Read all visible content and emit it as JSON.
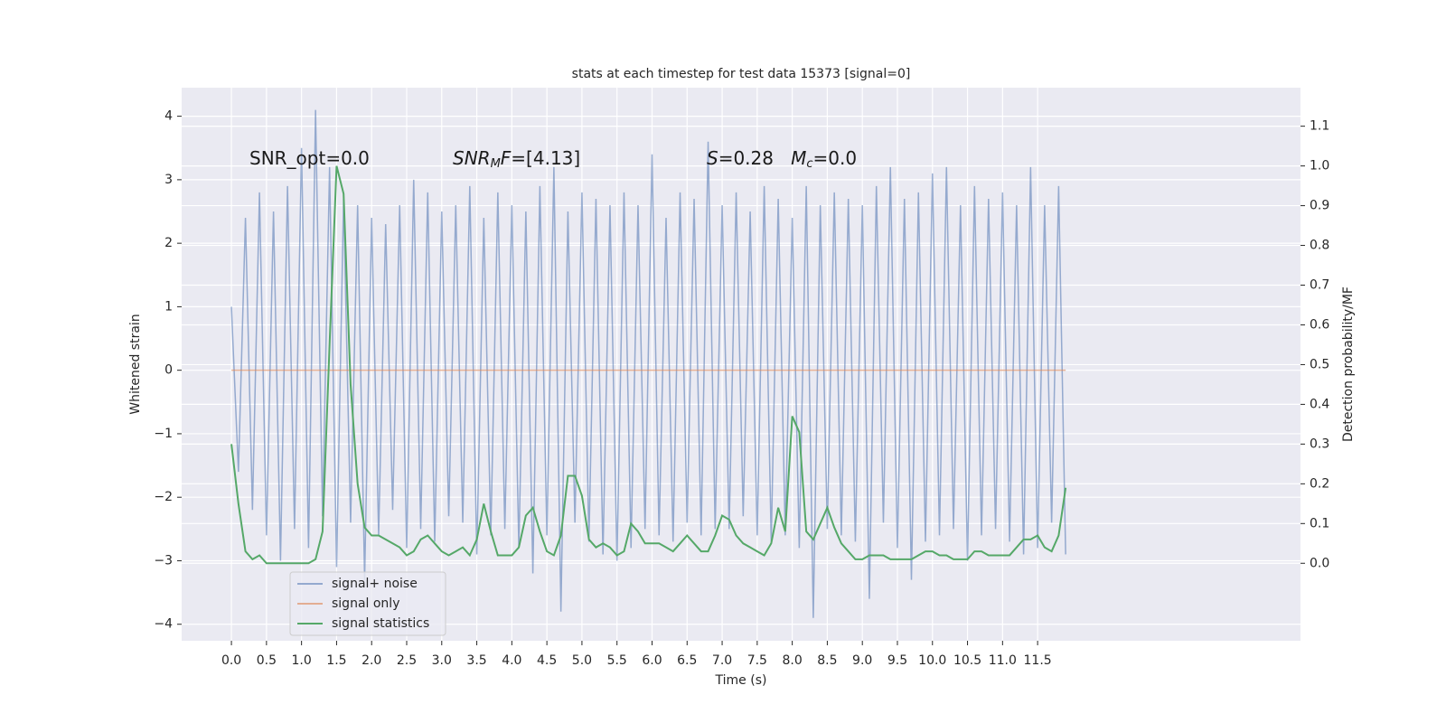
{
  "chart_data": {
    "type": "line",
    "title": "stats at each timestep for test data 15373 [signal=0]",
    "xlabel": "Time (s)",
    "ylabel": "Whitened strain",
    "y2label": "Detection probability/MF",
    "xlim": [
      -0.71,
      15.25
    ],
    "ylim": [
      -4.26,
      4.45
    ],
    "y2lim": [
      -0.195,
      1.197
    ],
    "xticks": [
      {
        "value": 0,
        "label": "0.0"
      },
      0.5,
      {
        "value": 1,
        "label": "1.0"
      },
      1.5,
      {
        "value": 2,
        "label": "2.0"
      },
      2.5,
      {
        "value": 3,
        "label": "3.0"
      },
      3.5,
      {
        "value": 4,
        "label": "4.0"
      },
      4.5,
      {
        "value": 5,
        "label": "5.0"
      },
      5.5,
      {
        "value": 6,
        "label": "6.0"
      },
      6.5,
      {
        "value": 7,
        "label": "7.0"
      },
      7.5,
      {
        "value": 8,
        "label": "8.0"
      },
      8.5,
      {
        "value": 9,
        "label": "9.0"
      },
      9.5,
      {
        "value": 10,
        "label": "10.0"
      },
      10.5,
      {
        "value": 11,
        "label": "11.0"
      },
      11.5
    ],
    "yticks": [
      {
        "value": -4,
        "label": "−4"
      },
      {
        "value": -3,
        "label": "−3"
      },
      {
        "value": -2,
        "label": "−2"
      },
      {
        "value": -1,
        "label": "−1"
      },
      0,
      1,
      2,
      3,
      4
    ],
    "y2ticks": [
      {
        "value": 0,
        "label": "0.0"
      },
      0.1,
      0.2,
      0.3,
      0.4,
      0.5,
      0.6,
      0.7,
      0.8,
      0.9,
      {
        "value": 1,
        "label": "1.0"
      },
      1.1
    ],
    "grid": true,
    "legend": "lower left",
    "annotations": [
      {
        "segments": [
          {
            "text": "SNR_opt=0.0",
            "style": "normal"
          }
        ]
      },
      {
        "segments": [
          {
            "text": "SNR",
            "style": "italic"
          },
          {
            "text": "M",
            "style": "sub"
          },
          {
            "text": "F",
            "style": "italic"
          },
          {
            "text": "=[4.13]",
            "style": "normal"
          }
        ]
      },
      {
        "segments": [
          {
            "text": "S",
            "style": "italic"
          },
          {
            "text": "=0.28   ",
            "style": "normal"
          },
          {
            "text": "M",
            "style": "italic"
          },
          {
            "text": "c",
            "style": "sub"
          },
          {
            "text": "=0.0",
            "style": "normal"
          }
        ]
      }
    ],
    "x": [
      0.0,
      0.1,
      0.2,
      0.3,
      0.4,
      0.5,
      0.6,
      0.7,
      0.8,
      0.9,
      1.0,
      1.1,
      1.2,
      1.3,
      1.4,
      1.5,
      1.6,
      1.7,
      1.8,
      1.9,
      2.0,
      2.1,
      2.2,
      2.3,
      2.4,
      2.5,
      2.6,
      2.7,
      2.8,
      2.9,
      3.0,
      3.1,
      3.2,
      3.3,
      3.4,
      3.5,
      3.6,
      3.7,
      3.8,
      3.9,
      4.0,
      4.1,
      4.2,
      4.3,
      4.4,
      4.5,
      4.6,
      4.7,
      4.8,
      4.9,
      5.0,
      5.1,
      5.2,
      5.3,
      5.4,
      5.5,
      5.6,
      5.7,
      5.8,
      5.9,
      6.0,
      6.1,
      6.2,
      6.3,
      6.4,
      6.5,
      6.6,
      6.7,
      6.8,
      6.9,
      7.0,
      7.1,
      7.2,
      7.3,
      7.4,
      7.5,
      7.6,
      7.7,
      7.8,
      7.9,
      8.0,
      8.1,
      8.2,
      8.3,
      8.4,
      8.5,
      8.6,
      8.7,
      8.8,
      8.9,
      9.0,
      9.1,
      9.2,
      9.3,
      9.4,
      9.5,
      9.6,
      9.7,
      9.8,
      9.9,
      10.0,
      10.1,
      10.2,
      10.3,
      10.4,
      10.5,
      10.6,
      10.7,
      10.8,
      10.9,
      11.0,
      11.1,
      11.2,
      11.3,
      11.4,
      11.5,
      11.6,
      11.7,
      11.8,
      11.9
    ],
    "series": [
      {
        "name": "signal+ noise",
        "color": "#4c72b0",
        "opacity": 0.55,
        "values": [
          1.0,
          -1.6,
          2.4,
          -2.2,
          2.8,
          -2.6,
          2.5,
          -3.0,
          2.9,
          -2.5,
          3.5,
          -2.8,
          4.1,
          -2.3,
          3.2,
          -3.1,
          2.7,
          -2.4,
          2.6,
          -3.3,
          2.4,
          -2.6,
          2.3,
          -2.2,
          2.6,
          -2.8,
          3.0,
          -2.5,
          2.8,
          -2.7,
          2.5,
          -2.3,
          2.6,
          -2.4,
          2.9,
          -2.9,
          2.4,
          -2.6,
          2.8,
          -2.5,
          2.6,
          -2.8,
          2.5,
          -3.2,
          2.9,
          -2.6,
          3.2,
          -3.8,
          2.5,
          -2.4,
          2.8,
          -2.7,
          2.7,
          -2.9,
          2.6,
          -3.0,
          2.8,
          -2.8,
          2.6,
          -2.5,
          3.4,
          -2.6,
          2.4,
          -2.7,
          2.8,
          -2.4,
          2.7,
          -2.6,
          3.6,
          -2.5,
          2.6,
          -2.5,
          2.8,
          -2.3,
          2.5,
          -2.6,
          2.9,
          -2.7,
          2.7,
          -2.6,
          2.4,
          -2.8,
          2.9,
          -3.9,
          2.6,
          -2.5,
          2.8,
          -2.6,
          2.7,
          -2.7,
          2.6,
          -3.6,
          2.9,
          -2.4,
          3.2,
          -2.8,
          2.7,
          -3.3,
          2.8,
          -2.7,
          3.1,
          -2.6,
          3.2,
          -2.5,
          2.6,
          -3.0,
          2.9,
          -2.6,
          2.7,
          -2.5,
          2.8,
          -2.7,
          2.6,
          -2.9,
          3.2,
          -2.8,
          2.6,
          -2.4,
          2.9,
          -2.9
        ]
      },
      {
        "name": "signal only",
        "color": "#dd8452",
        "opacity": 0.6,
        "values": [
          0,
          0,
          0,
          0,
          0,
          0,
          0,
          0,
          0,
          0,
          0,
          0,
          0,
          0,
          0,
          0,
          0,
          0,
          0,
          0,
          0,
          0,
          0,
          0,
          0,
          0,
          0,
          0,
          0,
          0,
          0,
          0,
          0,
          0,
          0,
          0,
          0,
          0,
          0,
          0,
          0,
          0,
          0,
          0,
          0,
          0,
          0,
          0,
          0,
          0,
          0,
          0,
          0,
          0,
          0,
          0,
          0,
          0,
          0,
          0,
          0,
          0,
          0,
          0,
          0,
          0,
          0,
          0,
          0,
          0,
          0,
          0,
          0,
          0,
          0,
          0,
          0,
          0,
          0,
          0,
          0,
          0,
          0,
          0,
          0,
          0,
          0,
          0,
          0,
          0,
          0,
          0,
          0,
          0,
          0,
          0,
          0,
          0,
          0,
          0,
          0,
          0,
          0,
          0,
          0,
          0,
          0,
          0,
          0,
          0,
          0,
          0,
          0,
          0,
          0,
          0,
          0,
          0,
          0,
          0
        ]
      },
      {
        "name": "signal statistics",
        "color": "#55a868",
        "opacity": 1,
        "axis": "y2",
        "values": [
          0.3,
          0.15,
          0.03,
          0.01,
          0.02,
          0.0,
          0.0,
          0.0,
          0.0,
          0.0,
          0.0,
          0.0,
          0.01,
          0.08,
          0.55,
          1.0,
          0.93,
          0.45,
          0.2,
          0.09,
          0.07,
          0.07,
          0.06,
          0.05,
          0.04,
          0.02,
          0.03,
          0.06,
          0.07,
          0.05,
          0.03,
          0.02,
          0.03,
          0.04,
          0.02,
          0.06,
          0.15,
          0.08,
          0.02,
          0.02,
          0.02,
          0.04,
          0.12,
          0.14,
          0.08,
          0.03,
          0.02,
          0.07,
          0.22,
          0.22,
          0.17,
          0.06,
          0.04,
          0.05,
          0.04,
          0.02,
          0.03,
          0.1,
          0.08,
          0.05,
          0.05,
          0.05,
          0.04,
          0.03,
          0.05,
          0.07,
          0.05,
          0.03,
          0.03,
          0.07,
          0.12,
          0.11,
          0.07,
          0.05,
          0.04,
          0.03,
          0.02,
          0.05,
          0.14,
          0.08,
          0.37,
          0.33,
          0.08,
          0.06,
          0.1,
          0.14,
          0.09,
          0.05,
          0.03,
          0.01,
          0.01,
          0.02,
          0.02,
          0.02,
          0.01,
          0.01,
          0.01,
          0.01,
          0.02,
          0.03,
          0.03,
          0.02,
          0.02,
          0.01,
          0.01,
          0.01,
          0.03,
          0.03,
          0.02,
          0.02,
          0.02,
          0.02,
          0.04,
          0.06,
          0.06,
          0.07,
          0.04,
          0.03,
          0.07,
          0.19
        ]
      }
    ]
  }
}
